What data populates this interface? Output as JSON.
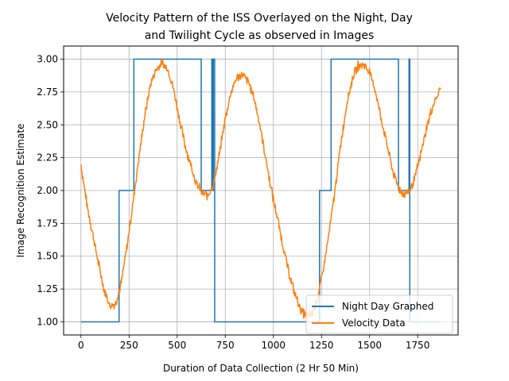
{
  "chart_data": {
    "type": "line",
    "title_lines": [
      "Velocity Pattern of the ISS Overlayed on the Night, Day",
      "and Twilight Cycle as observed in Images"
    ],
    "xlabel": "Duration of Data Collection (2 Hr 50 Min)",
    "ylabel": "Image Recognition Estimate",
    "xlim": [
      -90,
      1960
    ],
    "ylim": [
      0.9,
      3.1
    ],
    "x_ticks": [
      0,
      250,
      500,
      750,
      1000,
      1250,
      1500,
      1750
    ],
    "x_tick_labels": [
      "0",
      "250",
      "500",
      "750",
      "1000",
      "1250",
      "1500",
      "1750"
    ],
    "y_ticks": [
      1.0,
      1.25,
      1.5,
      1.75,
      2.0,
      2.25,
      2.5,
      2.75,
      3.0
    ],
    "y_tick_labels": [
      "1.00",
      "1.25",
      "1.50",
      "1.75",
      "2.00",
      "2.25",
      "2.50",
      "2.75",
      "3.00"
    ],
    "grid": true,
    "legend_position": "lower-right",
    "series": [
      {
        "name": "Night Day Graphed",
        "color": "#1f77b4",
        "step": true,
        "x": [
          0,
          198,
          198,
          275,
          275,
          625,
          625,
          680,
          680,
          684,
          684,
          688,
          688,
          695,
          695,
          1240,
          1240,
          1300,
          1300,
          1650,
          1650,
          1705,
          1705,
          1709,
          1709,
          1713,
          1713,
          1870
        ],
        "y": [
          1.0,
          1.0,
          2.0,
          2.0,
          3.0,
          3.0,
          2.0,
          2.0,
          3.0,
          3.0,
          2.0,
          2.0,
          3.0,
          3.0,
          1.0,
          1.0,
          2.0,
          2.0,
          3.0,
          3.0,
          2.0,
          2.0,
          3.0,
          3.0,
          1.0,
          1.0,
          1.0,
          1.0
        ]
      },
      {
        "name": "Velocity Data",
        "color": "#ff7f0e",
        "step": false,
        "noise_amplitude": 0.03,
        "x": [
          0,
          30,
          60,
          90,
          120,
          150,
          180,
          210,
          240,
          270,
          300,
          330,
          360,
          390,
          420,
          450,
          480,
          510,
          540,
          570,
          600,
          630,
          660,
          690,
          720,
          750,
          780,
          810,
          840,
          870,
          900,
          930,
          960,
          990,
          1020,
          1050,
          1080,
          1110,
          1140,
          1170,
          1200,
          1230,
          1260,
          1290,
          1320,
          1350,
          1380,
          1410,
          1440,
          1470,
          1500,
          1530,
          1560,
          1590,
          1620,
          1650,
          1680,
          1710,
          1740,
          1770,
          1800,
          1830,
          1870
        ],
        "y": [
          2.2,
          1.9,
          1.68,
          1.45,
          1.25,
          1.12,
          1.14,
          1.3,
          1.58,
          1.9,
          2.24,
          2.55,
          2.8,
          2.92,
          2.97,
          2.93,
          2.78,
          2.56,
          2.35,
          2.2,
          2.05,
          1.98,
          1.96,
          2.05,
          2.28,
          2.55,
          2.75,
          2.86,
          2.88,
          2.83,
          2.7,
          2.5,
          2.25,
          2.0,
          1.8,
          1.58,
          1.38,
          1.22,
          1.1,
          1.04,
          1.06,
          1.18,
          1.4,
          1.68,
          2.0,
          2.35,
          2.65,
          2.85,
          2.95,
          2.96,
          2.9,
          2.76,
          2.55,
          2.35,
          2.15,
          2.02,
          1.97,
          2.0,
          2.12,
          2.3,
          2.5,
          2.65,
          2.78
        ]
      }
    ]
  }
}
